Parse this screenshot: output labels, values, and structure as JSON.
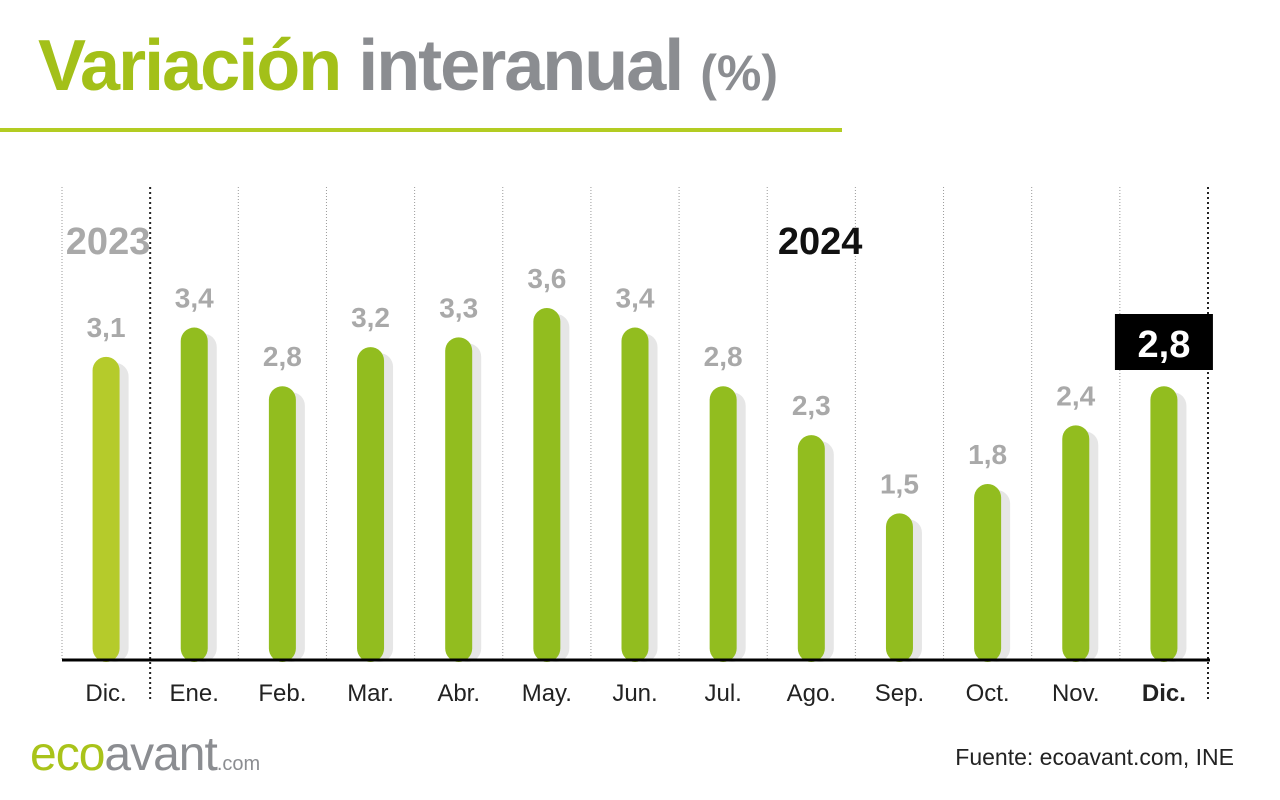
{
  "header": {
    "title_part1": "Variación",
    "title_part2": "interanual",
    "title_unit": "(%)"
  },
  "chart_data": {
    "type": "bar",
    "categories": [
      "Dic.",
      "Ene.",
      "Feb.",
      "Mar.",
      "Abr.",
      "May.",
      "Jun.",
      "Jul.",
      "Ago.",
      "Sep.",
      "Oct.",
      "Nov.",
      "Dic."
    ],
    "values": [
      3.1,
      3.4,
      2.8,
      3.2,
      3.3,
      3.6,
      3.4,
      2.8,
      2.3,
      1.5,
      1.8,
      2.4,
      2.8
    ],
    "value_labels": [
      "3,1",
      "3,4",
      "2,8",
      "3,2",
      "3,3",
      "3,6",
      "3,4",
      "2,8",
      "2,3",
      "1,5",
      "1,8",
      "2,4",
      "2,8"
    ],
    "year_labels": [
      "2023",
      "2024"
    ],
    "highlight_index": 12,
    "ylim": [
      0,
      3.6
    ],
    "colors": {
      "bar": "#92bd1f",
      "bar_previous_year": "#b5cb2b",
      "bar_shadow": "#e6e6e6",
      "value_label": "#a9a9a9",
      "highlight_box": "#000000",
      "highlight_text": "#ffffff",
      "axis": "#000000",
      "gridline": "#9a9a9a"
    }
  },
  "footer": {
    "logo_part1": "eco",
    "logo_part2": "avant",
    "logo_part3": ".com",
    "source": "Fuente: ecoavant.com, INE"
  }
}
